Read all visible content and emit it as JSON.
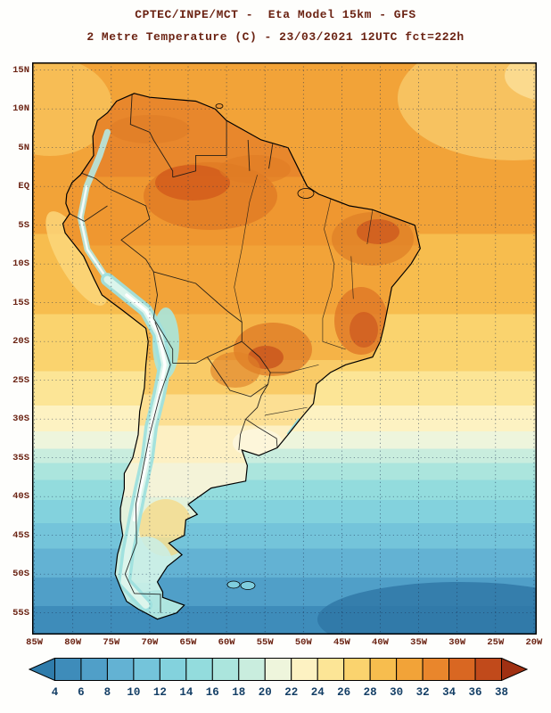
{
  "header": {
    "line1": "CPTEC/INPE/MCT -  Eta Model 15km - GFS",
    "line2": "2 Metre Temperature (C) - 23/03/2021 12UTC fct=222h",
    "color": "#6b2313"
  },
  "map": {
    "lat_labels": [
      "15N",
      "10N",
      "5N",
      "EQ",
      "5S",
      "10S",
      "15S",
      "20S",
      "25S",
      "30S",
      "35S",
      "40S",
      "45S",
      "50S",
      "55S"
    ],
    "lon_labels": [
      "85W",
      "80W",
      "75W",
      "70W",
      "65W",
      "60W",
      "55W",
      "50W",
      "45W",
      "40W",
      "35W",
      "30W",
      "25W",
      "20W"
    ],
    "label_color": "#6b2313",
    "frame_color": "#000000"
  },
  "colorbar": {
    "tick_labels": [
      "4",
      "6",
      "8",
      "10",
      "12",
      "14",
      "16",
      "18",
      "20",
      "22",
      "24",
      "26",
      "28",
      "30",
      "32",
      "34",
      "36",
      "38"
    ],
    "cell_colors": [
      "#2f7cab",
      "#3e8cba",
      "#509fc8",
      "#63b2d3",
      "#74c4da",
      "#83d2dd",
      "#93dcdd",
      "#abe5dd",
      "#c9edde",
      "#eef5dc",
      "#fdf2c2",
      "#fce596",
      "#fad36e",
      "#f7bd4e",
      "#f2a338",
      "#e9862c",
      "#d96722",
      "#c14a1b",
      "#a03012"
    ],
    "tick_color": "#143f66"
  }
}
